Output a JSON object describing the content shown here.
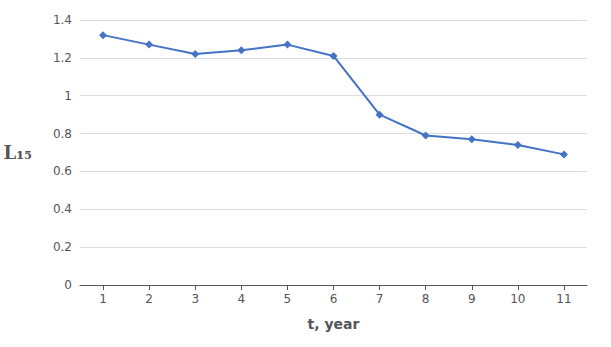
{
  "chart_data": {
    "type": "line",
    "x": [
      1,
      2,
      3,
      4,
      5,
      6,
      7,
      8,
      9,
      10,
      11
    ],
    "values": [
      1.32,
      1.27,
      1.22,
      1.24,
      1.27,
      1.21,
      0.9,
      0.79,
      0.77,
      0.74,
      0.69
    ],
    "xlabel": "t, year",
    "ylabel": "L₁₅",
    "xlim": [
      0.5,
      11.5
    ],
    "xticks": [
      1,
      2,
      3,
      4,
      5,
      6,
      7,
      8,
      9,
      10,
      11
    ],
    "ylim": [
      0,
      1.4
    ],
    "yticks": [
      0,
      0.2,
      0.4,
      0.6,
      0.8,
      1,
      1.2,
      1.4
    ],
    "color": "#4472C4",
    "marker": "diamond",
    "grid": true
  }
}
